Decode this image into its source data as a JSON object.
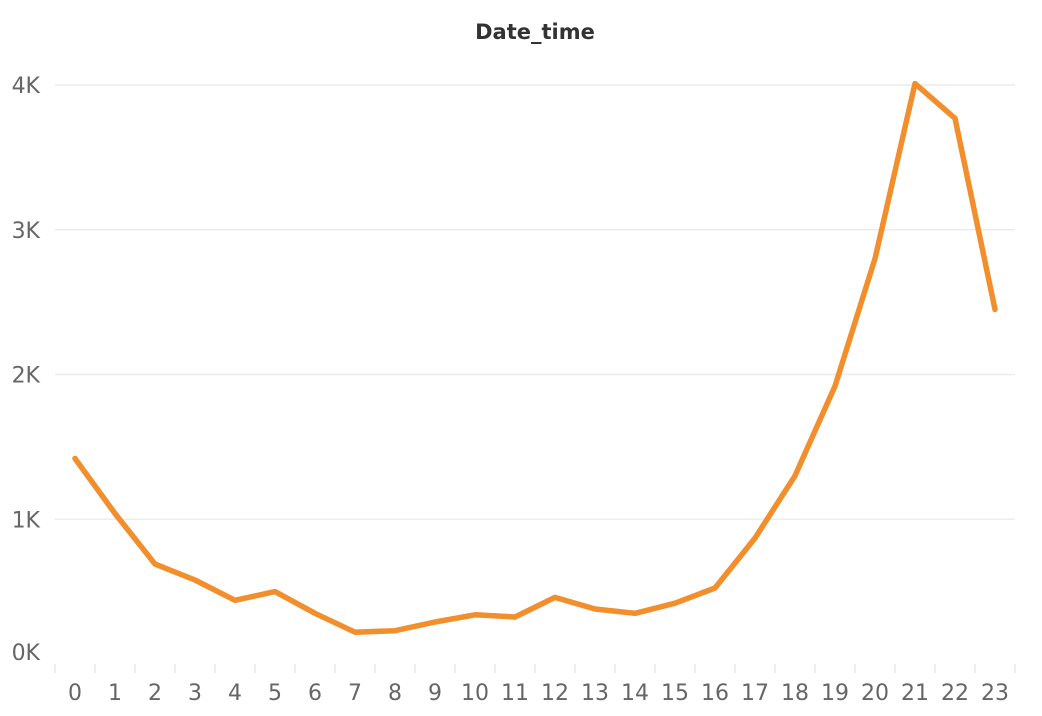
{
  "colors": {
    "line": "#F28E2B",
    "grid": "#ECECEC",
    "tick_text": "#666666",
    "title_text": "#333333",
    "background": "#FFFFFF"
  },
  "chart_data": {
    "type": "line",
    "title": "Date_time",
    "xlabel": "",
    "ylabel": "",
    "categories": [
      "0",
      "1",
      "2",
      "3",
      "4",
      "5",
      "6",
      "7",
      "8",
      "9",
      "10",
      "11",
      "12",
      "13",
      "14",
      "15",
      "16",
      "17",
      "18",
      "19",
      "20",
      "21",
      "22",
      "23"
    ],
    "series": [
      {
        "values": [
          1420,
          1040,
          690,
          580,
          440,
          500,
          350,
          220,
          230,
          290,
          340,
          325,
          460,
          380,
          350,
          420,
          525,
          870,
          1300,
          1920,
          2800,
          4010,
          3770,
          2450
        ]
      }
    ],
    "ylim": [
      0,
      4000
    ],
    "y_ticks": [
      0,
      1000,
      2000,
      3000,
      4000
    ],
    "y_tick_labels": [
      "0K",
      "1K",
      "2K",
      "3K",
      "4K"
    ],
    "grid": true,
    "legend": "none"
  }
}
